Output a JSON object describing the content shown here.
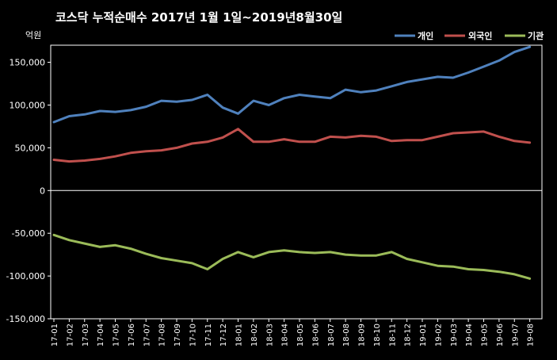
{
  "chart_data": {
    "type": "line",
    "title": "코스닥 누적순매수 2017년 1월 1일~2019년8월30일",
    "unit_label": "억원",
    "ylim": [
      -150000,
      170000
    ],
    "y_ticks": [
      150000,
      100000,
      50000,
      0,
      -50000,
      -100000,
      -150000
    ],
    "y_tick_labels": [
      "150,000",
      "100,000",
      "50,000",
      "0",
      "-50,000",
      "-100,000",
      "-150,000"
    ],
    "grid": false,
    "legend_position": "top-right",
    "x": [
      "17-01",
      "17-02",
      "17-03",
      "17-04",
      "17-05",
      "17-06",
      "17-07",
      "17-08",
      "17-09",
      "17-10",
      "17-11",
      "17-12",
      "18-01",
      "18-02",
      "18-03",
      "18-04",
      "18-05",
      "18-06",
      "18-07",
      "18-08",
      "18-09",
      "18-10",
      "18-11",
      "18-12",
      "19-01",
      "19-02",
      "19-03",
      "19-04",
      "19-05",
      "19-06",
      "19-07",
      "19-08"
    ],
    "series": [
      {
        "name": "개인",
        "color": "#4F81BD",
        "values": [
          80000,
          87000,
          89000,
          93000,
          92000,
          94000,
          98000,
          105000,
          104000,
          106000,
          112000,
          97000,
          90000,
          105000,
          100000,
          108000,
          112000,
          110000,
          108000,
          118000,
          115000,
          117000,
          122000,
          127000,
          130000,
          133000,
          132000,
          138000,
          145000,
          152000,
          162000,
          168000
        ]
      },
      {
        "name": "외국인",
        "color": "#C0504D",
        "values": [
          36000,
          34000,
          35000,
          37000,
          40000,
          44000,
          46000,
          47000,
          50000,
          55000,
          57000,
          62000,
          72000,
          57000,
          57000,
          60000,
          57000,
          57000,
          63000,
          62000,
          64000,
          63000,
          58000,
          59000,
          59000,
          63000,
          67000,
          68000,
          69000,
          63000,
          58000,
          56000
        ]
      },
      {
        "name": "기관",
        "color": "#9BBB59",
        "values": [
          -52000,
          -58000,
          -62000,
          -66000,
          -64000,
          -68000,
          -74000,
          -79000,
          -82000,
          -85000,
          -92000,
          -80000,
          -72000,
          -78000,
          -72000,
          -70000,
          -72000,
          -73000,
          -72000,
          -75000,
          -76000,
          -76000,
          -72000,
          -80000,
          -84000,
          -88000,
          -89000,
          -92000,
          -93000,
          -95000,
          -98000,
          -103000
        ]
      }
    ]
  }
}
